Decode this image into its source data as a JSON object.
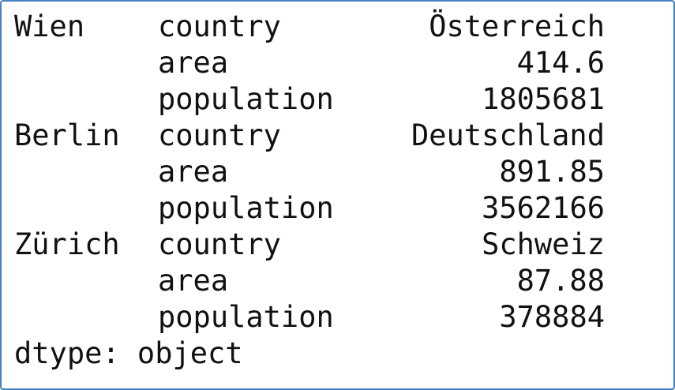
{
  "groups": [
    {
      "city": "Wien",
      "rows": [
        {
          "field": "country",
          "value": "Österreich"
        },
        {
          "field": "area",
          "value": 414.6
        },
        {
          "field": "population",
          "value": 1805681
        }
      ]
    },
    {
      "city": "Berlin",
      "rows": [
        {
          "field": "country",
          "value": "Deutschland"
        },
        {
          "field": "area",
          "value": 891.85
        },
        {
          "field": "population",
          "value": 3562166
        }
      ]
    },
    {
      "city": "Zürich",
      "rows": [
        {
          "field": "country",
          "value": "Schweiz"
        },
        {
          "field": "area",
          "value": 87.88
        },
        {
          "field": "population",
          "value": 378884
        }
      ]
    }
  ],
  "footer": "dtype: object"
}
